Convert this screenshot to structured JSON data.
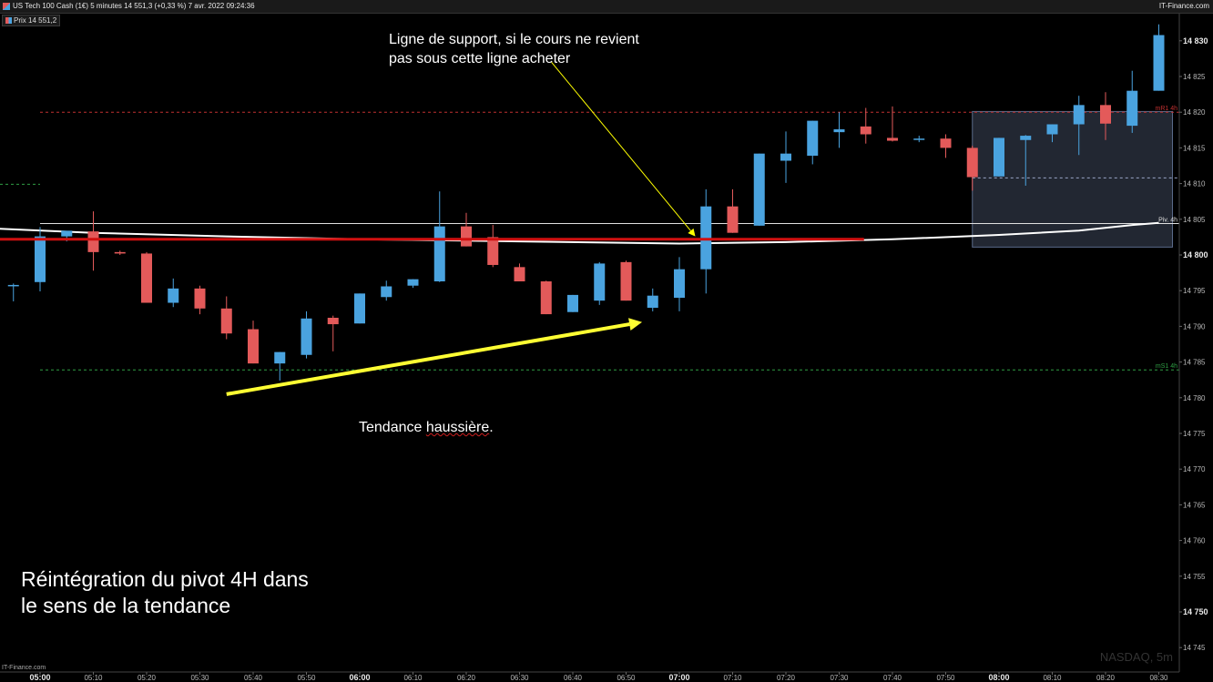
{
  "window": {
    "title": "US Tech 100 Cash (1€) 5 minutes 14 551,3 (+0,33 %) 7 avr. 2022 09:24:36",
    "brand": "IT-Finance.com"
  },
  "legend": {
    "label": "Prix 14 551,2"
  },
  "footer": {
    "brand": "IT-Finance.com"
  },
  "watermark": "NASDAQ, 5m",
  "annotations": {
    "support_note": "Ligne de support, si le cours ne revient\npas sous cette ligne acheter",
    "trend_prefix": "Tendance ",
    "trend_word": "haussière",
    "trend_suffix": ".",
    "pivot_note": "Réintégration du pivot 4H dans le sens de la tendance"
  },
  "chart_data": {
    "type": "candlestick",
    "timeframe": "5m",
    "ylim": [
      14743,
      14832
    ],
    "y_ticks": [
      14745,
      14750,
      14755,
      14760,
      14765,
      14770,
      14775,
      14780,
      14785,
      14790,
      14795,
      14800,
      14805,
      14810,
      14815,
      14820,
      14825,
      14830
    ],
    "y_bold_ticks": [
      14750,
      14800,
      14830
    ],
    "x_ticks": [
      {
        "label": "05:00",
        "bold": true
      },
      {
        "label": "05:10"
      },
      {
        "label": "05:20"
      },
      {
        "label": "05:30"
      },
      {
        "label": "05:40"
      },
      {
        "label": "05:50"
      },
      {
        "label": "06:00",
        "bold": true
      },
      {
        "label": "06:10"
      },
      {
        "label": "06:20"
      },
      {
        "label": "06:30"
      },
      {
        "label": "06:40"
      },
      {
        "label": "06:50"
      },
      {
        "label": "07:00",
        "bold": true
      },
      {
        "label": "07:10"
      },
      {
        "label": "07:20"
      },
      {
        "label": "07:30"
      },
      {
        "label": "07:40"
      },
      {
        "label": "07:50"
      },
      {
        "label": "08:00",
        "bold": true
      },
      {
        "label": "08:10"
      },
      {
        "label": "08:20"
      },
      {
        "label": "08:30"
      }
    ],
    "first_bar": "04:55",
    "candles": [
      [
        14795.8,
        14796.0,
        14793.5,
        14795.8
      ],
      [
        14796.2,
        14803.9,
        14794.9,
        14802.6
      ],
      [
        14802.6,
        14803.3,
        14801.9,
        14803.4
      ],
      [
        14803.3,
        14806.1,
        14797.8,
        14800.4
      ],
      [
        14800.4,
        14800.6,
        14800.0,
        14800.2
      ],
      [
        14800.2,
        14800.4,
        14793.3,
        14793.3
      ],
      [
        14793.3,
        14796.7,
        14792.7,
        14795.3
      ],
      [
        14795.3,
        14795.7,
        14791.7,
        14792.5
      ],
      [
        14792.5,
        14794.2,
        14788.2,
        14789.0
      ],
      [
        14789.6,
        14790.8,
        14784.8,
        14784.8
      ],
      [
        14784.8,
        14786.4,
        14782.4,
        14786.4
      ],
      [
        14786.0,
        14792.1,
        14785.5,
        14791.1
      ],
      [
        14791.2,
        14791.5,
        14786.5,
        14790.3
      ],
      [
        14790.4,
        14794.6,
        14790.4,
        14794.6
      ],
      [
        14794.1,
        14796.4,
        14793.6,
        14795.6
      ],
      [
        14795.7,
        14796.6,
        14795.4,
        14796.6
      ],
      [
        14796.3,
        14808.9,
        14796.2,
        14804.0
      ],
      [
        14804.0,
        14805.9,
        14801.2,
        14801.2
      ],
      [
        14802.5,
        14804.2,
        14798.3,
        14798.6
      ],
      [
        14798.3,
        14798.8,
        14796.3,
        14796.3
      ],
      [
        14796.3,
        14796.4,
        14791.7,
        14791.7
      ],
      [
        14792.0,
        14794.4,
        14792.0,
        14794.4
      ],
      [
        14793.6,
        14799.0,
        14793.0,
        14798.8
      ],
      [
        14799.0,
        14799.2,
        14793.6,
        14793.6
      ],
      [
        14792.6,
        14795.3,
        14792.1,
        14794.3
      ],
      [
        14794.0,
        14799.7,
        14792.1,
        14798.0
      ],
      [
        14798.0,
        14809.2,
        14794.6,
        14806.8
      ],
      [
        14806.8,
        14809.2,
        14803.1,
        14803.1
      ],
      [
        14804.1,
        14814.2,
        14804.1,
        14814.2
      ],
      [
        14813.2,
        14817.3,
        14810.1,
        14814.2
      ],
      [
        14813.9,
        14818.8,
        14812.7,
        14818.8
      ],
      [
        14817.2,
        14820.0,
        14815.0,
        14817.6
      ],
      [
        14818.0,
        14820.6,
        14815.6,
        14816.9
      ],
      [
        14816.4,
        14820.8,
        14815.9,
        14816.0
      ],
      [
        14816.2,
        14816.7,
        14815.8,
        14816.3
      ],
      [
        14816.3,
        14816.9,
        14813.6,
        14815.0
      ],
      [
        14815.0,
        14815.3,
        14809.0,
        14810.9
      ],
      [
        14811.0,
        14816.4,
        14811.0,
        14816.4
      ],
      [
        14816.1,
        14816.8,
        14809.7,
        14816.7
      ],
      [
        14816.9,
        14818.3,
        14815.8,
        14818.3
      ],
      [
        14818.3,
        14822.3,
        14814.0,
        14821.0
      ],
      [
        14821.0,
        14822.8,
        14816.1,
        14818.4
      ],
      [
        14818.1,
        14825.8,
        14817.1,
        14823.0
      ],
      [
        14823.0,
        14832.3,
        14823.0,
        14830.8
      ]
    ],
    "levels": [
      {
        "label": "mR1 4h",
        "value": 14820.0,
        "color": "#c03030",
        "style": "dashed"
      },
      {
        "label": "mS1 4h",
        "value": 14783.9,
        "color": "#2f9e44",
        "style": "dashed"
      },
      {
        "label": "Piv. 4h",
        "value": 14804.4,
        "color": "#e0e0e0",
        "style": "solid"
      },
      {
        "label": "",
        "value": 14809.9,
        "color": "#2f9e44",
        "style": "dashed"
      },
      {
        "label": "",
        "value": 14810.8,
        "color": "#9aa6c8",
        "style": "dashed"
      }
    ],
    "support_line": {
      "from": "04:45",
      "to": "07:35",
      "value": 14802.2,
      "color": "#d11010"
    },
    "moving_average": {
      "color": "#ffffff",
      "points": [
        [
          "04:45",
          14803.9
        ],
        [
          "05:10",
          14803.1
        ],
        [
          "05:35",
          14802.6
        ],
        [
          "06:00",
          14802.2
        ],
        [
          "06:30",
          14801.9
        ],
        [
          "07:00",
          14801.6
        ],
        [
          "07:20",
          14801.8
        ],
        [
          "07:40",
          14802.2
        ],
        [
          "08:00",
          14802.8
        ],
        [
          "08:15",
          14803.4
        ],
        [
          "08:25",
          14804.2
        ],
        [
          "08:30",
          14804.5
        ]
      ]
    },
    "zone": {
      "from": "07:55",
      "to": "08:30",
      "top": 14820.1,
      "bottom": 14801.1
    },
    "trend_arrow": {
      "from": [
        "05:35",
        14780.5
      ],
      "to": [
        "06:53",
        14790.6
      ],
      "color": "#ffff33"
    },
    "support_pointer": {
      "from": [
        "06:36",
        14827.0
      ],
      "to": [
        "07:03",
        14802.6
      ],
      "color": "#ffff00"
    },
    "colors": {
      "up": "#4aa3df",
      "down": "#e35a5a",
      "grid": "#222222"
    }
  }
}
